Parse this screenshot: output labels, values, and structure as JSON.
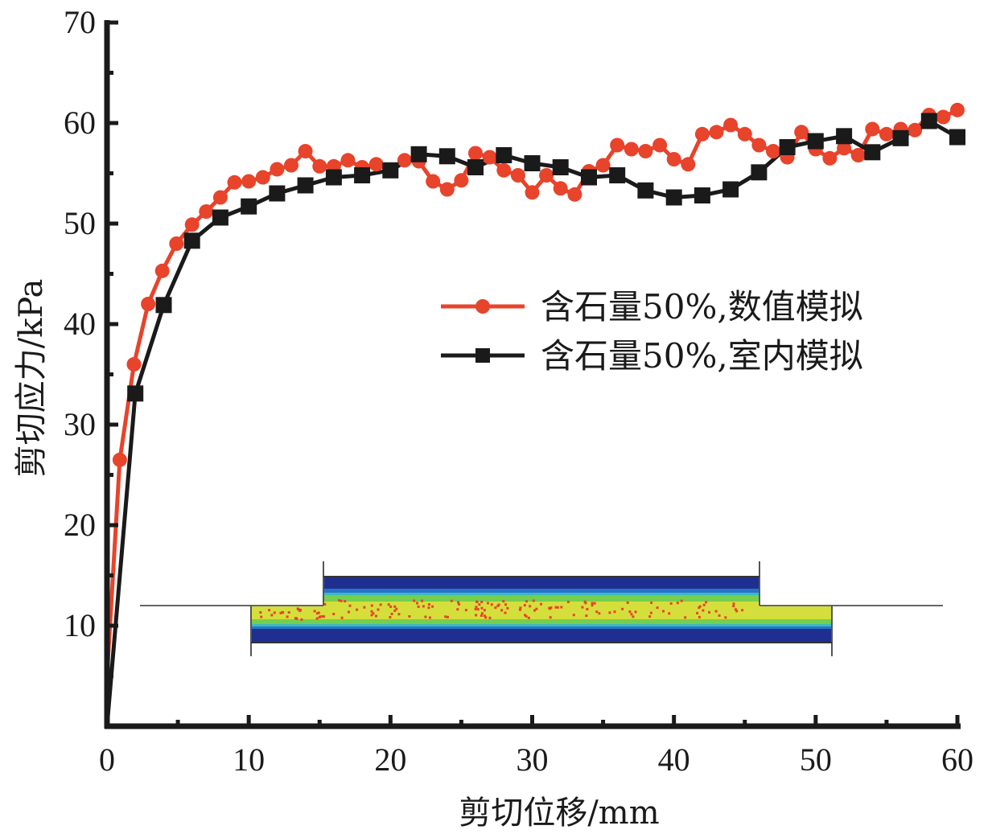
{
  "chart_data": {
    "type": "line",
    "title": "",
    "xlabel": "剪切位移/mm",
    "ylabel": "剪切应力/kPa",
    "xlim": [
      0,
      60
    ],
    "ylim": [
      0,
      70
    ],
    "xticks": [
      0,
      10,
      20,
      30,
      40,
      50,
      60
    ],
    "yticks": [
      10,
      20,
      30,
      40,
      50,
      60,
      70
    ],
    "xtick_labels": [
      "0",
      "10",
      "20",
      "30",
      "40",
      "50",
      "60"
    ],
    "ytick_labels": [
      "10",
      "20",
      "30",
      "40",
      "50",
      "60",
      "70"
    ],
    "grid": false,
    "legend_position": "center-right",
    "series": [
      {
        "name": "含石量50%,数值模拟",
        "color": "#e8432b",
        "marker": "circle",
        "x": [
          0,
          0.9,
          1.9,
          2.9,
          3.9,
          4.9,
          6,
          7,
          8,
          9,
          10,
          11,
          12,
          13,
          14,
          15,
          16,
          17,
          18,
          19,
          20,
          21,
          22,
          23,
          24,
          25,
          26,
          27,
          28,
          29,
          30,
          31,
          32,
          33,
          34,
          35,
          36,
          37,
          38,
          39,
          40,
          41,
          42,
          43,
          44,
          45,
          46,
          47,
          48,
          49,
          50,
          51,
          52,
          53,
          54,
          55,
          56,
          57,
          58,
          59,
          60
        ],
        "y": [
          5,
          26.5,
          36,
          42,
          45.3,
          48,
          49.9,
          51.2,
          52.6,
          54.1,
          54.2,
          54.6,
          55.4,
          55.8,
          57.2,
          55.7,
          55.7,
          56.3,
          55.6,
          55.9,
          55.3,
          56.3,
          56.2,
          54.2,
          53.4,
          54.3,
          57,
          56.6,
          55.3,
          54.8,
          53.1,
          54.8,
          53.5,
          52.9,
          55.2,
          55.8,
          57.8,
          57.4,
          57.2,
          57.8,
          56.4,
          55.9,
          58.9,
          59.1,
          59.8,
          58.9,
          57.8,
          57.2,
          56.6,
          59.1,
          57.4,
          56.5,
          57.5,
          56.8,
          59.4,
          58.9,
          59.4,
          59.3,
          60.8,
          60.6,
          61.3
        ]
      },
      {
        "name": "含石量50%,室内模拟",
        "color": "#1a1a1a",
        "marker": "square",
        "x": [
          0,
          2,
          4,
          6,
          8,
          10,
          12,
          14,
          16,
          18,
          20,
          22,
          24,
          26,
          28,
          30,
          32,
          34,
          36,
          38,
          40,
          42,
          44,
          46,
          48,
          50,
          52,
          54,
          56,
          58,
          60
        ],
        "y": [
          0,
          33.1,
          41.9,
          48.3,
          50.6,
          51.7,
          53,
          53.8,
          54.6,
          54.8,
          55.3,
          56.9,
          56.7,
          55.6,
          56.8,
          56,
          55.6,
          54.6,
          54.8,
          53.3,
          52.6,
          52.8,
          53.4,
          55.1,
          57.6,
          58.2,
          58.7,
          57.1,
          58.5,
          60.2,
          58.6
        ]
      }
    ],
    "inset": {
      "description": "simulation shear-box particle contour image",
      "colors": [
        "#1e2f8f",
        "#2a7fd4",
        "#3fc6c0",
        "#7fd23a",
        "#e6e23a",
        "#e8432b"
      ]
    }
  }
}
